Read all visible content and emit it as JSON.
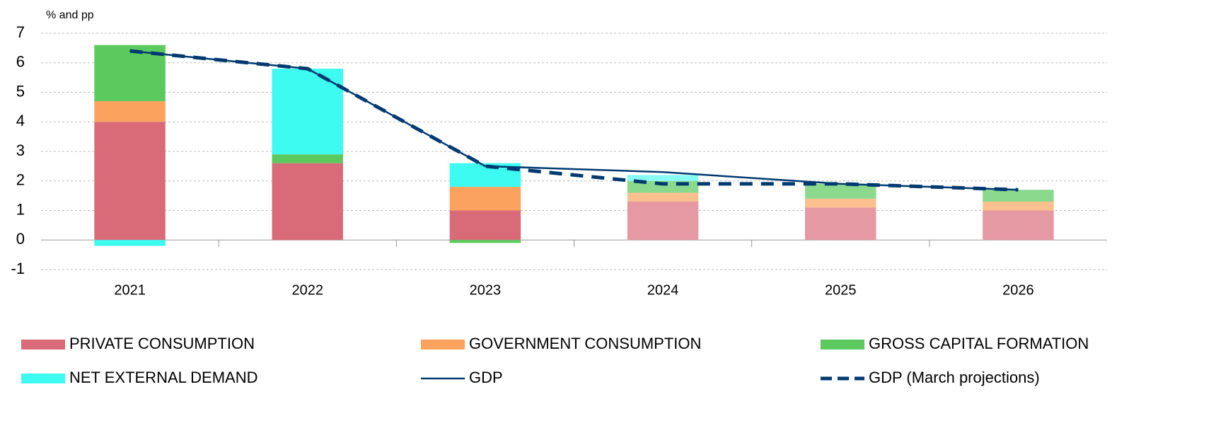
{
  "chart_data": {
    "type": "stacked-bar-line",
    "y_label": "% and pp",
    "categories": [
      "2021",
      "2022",
      "2023",
      "2024",
      "2025",
      "2026"
    ],
    "series": [
      {
        "name": "PRIVATE CONSUMPTION",
        "kind": "bar",
        "color": "#d96b79",
        "colors": [
          "#d96b79",
          "#d96b79",
          "#d96b79",
          "#e599a3",
          "#e599a3",
          "#e599a3"
        ],
        "values": [
          4.0,
          2.6,
          1.0,
          1.3,
          1.1,
          1.0
        ]
      },
      {
        "name": "GOVERNMENT CONSUMPTION",
        "kind": "bar",
        "color": "#fba35e",
        "colors": [
          "#fba35e",
          "#fba35e",
          "#fba35e",
          "#fcc08f",
          "#fcc08f",
          "#fcc08f"
        ],
        "values": [
          0.7,
          0,
          0.8,
          0.3,
          0.3,
          0.3
        ]
      },
      {
        "name": "GROSS CAPITAL FORMATION",
        "kind": "bar",
        "color": "#5bc95e",
        "colors": [
          "#5bc95e",
          "#5bc95e",
          "#5bc95e",
          "#8ad98c",
          "#8ad98c",
          "#8ad98c"
        ],
        "values": [
          1.9,
          0.3,
          -0.1,
          0.4,
          0.5,
          0.4
        ]
      },
      {
        "name": "NET EXTERNAL DEMAND",
        "kind": "bar",
        "color": "#3dfbf1",
        "colors": [
          "#3dfbf1",
          "#3dfbf1",
          "#3dfbf1",
          "#86fcf5",
          "#86fcf5",
          "#86fcf5"
        ],
        "values": [
          -0.2,
          2.9,
          0.8,
          0.2,
          0,
          0
        ]
      },
      {
        "name": "GDP",
        "kind": "line",
        "color": "#003a70",
        "dashed": false,
        "values": [
          6.4,
          5.8,
          2.5,
          2.3,
          1.9,
          1.7
        ]
      },
      {
        "name": "GDP (March projections)",
        "kind": "line",
        "color": "#003a70",
        "dashed": true,
        "values": [
          6.4,
          5.8,
          2.5,
          1.9,
          1.9,
          1.7
        ]
      }
    ],
    "ylim": [
      -1,
      7
    ],
    "yticks": [
      -1,
      0,
      1,
      2,
      3,
      4,
      5,
      6,
      7
    ],
    "grid": true
  }
}
